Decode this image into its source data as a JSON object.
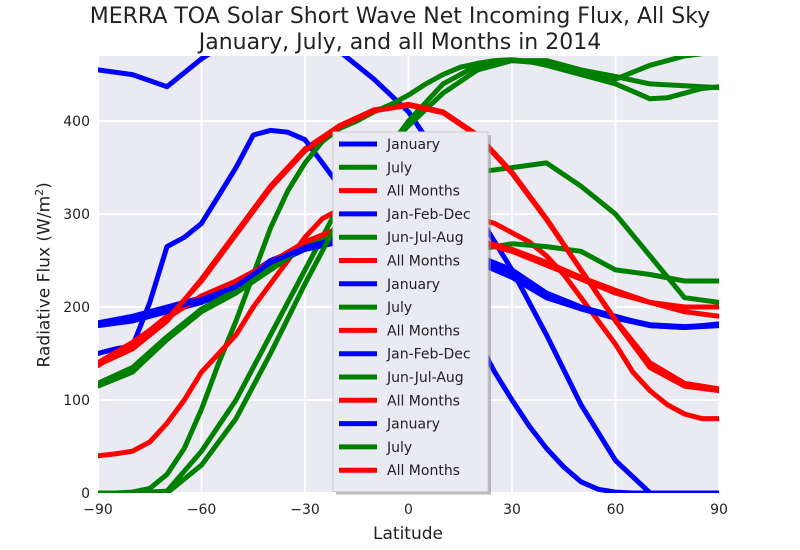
{
  "chart_data": {
    "type": "line",
    "title": "MERRA TOA Solar Short Wave Net Incoming Flux, All Sky",
    "subtitle": "January, July, and all Months in 2014",
    "xlabel": "Latitude",
    "ylabel_main": "Radiative Flux (W/m",
    "ylabel_sup": "2",
    "ylabel_end": ")",
    "xlim": [
      -90,
      90
    ],
    "ylim": [
      0,
      470
    ],
    "xticks": [
      -90,
      -60,
      -30,
      0,
      30,
      60,
      90
    ],
    "xtick_labels": [
      "−90",
      "−60",
      "−30",
      "0",
      "30",
      "60",
      "90"
    ],
    "yticks": [
      0,
      100,
      200,
      300,
      400
    ],
    "ytick_labels": [
      "0",
      "100",
      "200",
      "300",
      "400"
    ],
    "grid": true,
    "legend_position": "center",
    "colors": {
      "blue": "#0000ff",
      "green": "#008000",
      "red": "#ff0000",
      "plot_bg": "#eaeaf2",
      "grid": "#ffffff"
    },
    "series": [
      {
        "name": "January",
        "color": "#0000ff",
        "x": [
          -90,
          -80,
          -70,
          -60,
          -50,
          -40,
          -30,
          -20,
          -10,
          0,
          10,
          20,
          30,
          40,
          50,
          60,
          70,
          80,
          90
        ],
        "y": [
          455,
          450,
          437,
          467,
          490,
          495,
          490,
          475,
          445,
          410,
          355,
          300,
          240,
          170,
          95,
          35,
          0,
          0,
          0
        ]
      },
      {
        "name": "July",
        "color": "#008000",
        "x": [
          -90,
          -80,
          -70,
          -60,
          -50,
          -40,
          -30,
          -20,
          -10,
          0,
          10,
          20,
          30,
          40,
          50,
          60,
          70,
          80,
          90
        ],
        "y": [
          0,
          0,
          2,
          45,
          100,
          170,
          240,
          310,
          355,
          395,
          430,
          455,
          465,
          465,
          455,
          445,
          460,
          470,
          475
        ]
      },
      {
        "name": "All Months",
        "color": "#ff0000",
        "x": [
          -90,
          -80,
          -70,
          -60,
          -50,
          -40,
          -30,
          -20,
          -10,
          0,
          10,
          20,
          30,
          40,
          50,
          60,
          70,
          80,
          90
        ],
        "y": [
          138,
          155,
          185,
          230,
          280,
          330,
          370,
          395,
          412,
          418,
          410,
          385,
          345,
          295,
          240,
          185,
          135,
          115,
          110
        ]
      },
      {
        "name": "Jan-Feb-Dec",
        "color": "#0000ff",
        "x": [
          -90,
          -85,
          -80,
          -75,
          -70,
          -65,
          -60,
          -55,
          -50,
          -45,
          -40,
          -35,
          -30,
          -25,
          -20,
          -15,
          -10,
          -5,
          0,
          5,
          10,
          15,
          20,
          25,
          30,
          35,
          40,
          45,
          50,
          55,
          60,
          65,
          70,
          75,
          80,
          85,
          90
        ],
        "y": [
          150,
          155,
          158,
          205,
          265,
          275,
          290,
          320,
          350,
          385,
          390,
          388,
          380,
          355,
          330,
          310,
          285,
          270,
          260,
          240,
          218,
          195,
          165,
          130,
          100,
          72,
          48,
          28,
          12,
          4,
          1,
          0,
          0,
          0,
          0,
          0,
          0
        ]
      },
      {
        "name": "Jun-Jul-Aug",
        "color": "#008000",
        "x": [
          -90,
          -85,
          -80,
          -75,
          -70,
          -65,
          -60,
          -55,
          -50,
          -45,
          -40,
          -35,
          -30,
          -25,
          -20,
          -15,
          -10,
          -5,
          0,
          5,
          10,
          15,
          20,
          25,
          30,
          35,
          40,
          45,
          50,
          55,
          60,
          65,
          70,
          75,
          80,
          85,
          90
        ],
        "y": [
          0,
          0,
          1,
          5,
          20,
          48,
          90,
          140,
          185,
          235,
          285,
          325,
          355,
          378,
          392,
          400,
          410,
          418,
          428,
          440,
          450,
          458,
          462,
          465,
          466,
          464,
          460,
          455,
          450,
          445,
          440,
          432,
          424,
          425,
          430,
          435,
          437
        ]
      },
      {
        "name": "All Months",
        "color": "#ff0000",
        "x": [
          -90,
          -85,
          -80,
          -75,
          -70,
          -65,
          -60,
          -55,
          -50,
          -45,
          -40,
          -35,
          -30,
          -25,
          -20,
          -15,
          -10,
          -5,
          0,
          5,
          10,
          15,
          20,
          25,
          30,
          35,
          40,
          45,
          50,
          55,
          60,
          65,
          70,
          75,
          80,
          85,
          90
        ],
        "y": [
          40,
          42,
          45,
          55,
          75,
          100,
          130,
          150,
          170,
          200,
          225,
          250,
          275,
          295,
          305,
          300,
          292,
          290,
          290,
          290,
          290,
          292,
          295,
          290,
          280,
          270,
          255,
          235,
          210,
          185,
          160,
          130,
          110,
          95,
          85,
          80,
          80
        ]
      },
      {
        "name": "January",
        "color": "#0000ff",
        "x": [
          -90,
          -80,
          -70,
          -60,
          -50,
          -40,
          -30,
          -20,
          -10,
          0,
          10,
          20,
          30,
          40,
          50,
          60,
          70,
          80,
          90
        ],
        "y": [
          183,
          190,
          200,
          210,
          225,
          250,
          265,
          275,
          280,
          275,
          265,
          255,
          240,
          215,
          200,
          190,
          180,
          178,
          180
        ]
      },
      {
        "name": "July",
        "color": "#008000",
        "x": [
          -90,
          -80,
          -70,
          -60,
          -50,
          -40,
          -30,
          -20,
          -10,
          0,
          10,
          20,
          30,
          40,
          50,
          60,
          70,
          80,
          90
        ],
        "y": [
          115,
          130,
          165,
          195,
          215,
          240,
          265,
          275,
          270,
          265,
          260,
          262,
          268,
          265,
          260,
          240,
          235,
          228,
          228
        ]
      },
      {
        "name": "All Months",
        "color": "#ff0000",
        "x": [
          -90,
          -80,
          -70,
          -60,
          -50,
          -40,
          -30,
          -20,
          -10,
          0,
          10,
          20,
          30,
          40,
          50,
          60,
          70,
          80,
          90
        ],
        "y": [
          137,
          160,
          190,
          210,
          225,
          245,
          268,
          285,
          290,
          288,
          280,
          270,
          260,
          245,
          230,
          215,
          205,
          200,
          200
        ]
      },
      {
        "name": "Jan-Feb-Dec",
        "color": "#0000ff",
        "x": [
          -90,
          -80,
          -70,
          -60,
          -50,
          -40,
          -30,
          -20,
          -10,
          0,
          10,
          20,
          30,
          40,
          50,
          60,
          70,
          80,
          90
        ],
        "y": [
          180,
          185,
          195,
          205,
          220,
          245,
          262,
          270,
          272,
          268,
          258,
          248,
          232,
          210,
          198,
          188,
          180,
          178,
          182
        ]
      },
      {
        "name": "Jun-Jul-Aug",
        "color": "#008000",
        "x": [
          -90,
          -80,
          -70,
          -60,
          -50,
          -40,
          -30,
          -20,
          -10,
          0,
          10,
          20,
          30,
          40,
          50,
          60,
          70,
          80,
          90
        ],
        "y": [
          118,
          135,
          168,
          198,
          218,
          242,
          266,
          278,
          285,
          305,
          335,
          345,
          350,
          355,
          330,
          300,
          255,
          210,
          205
        ]
      },
      {
        "name": "All Months",
        "color": "#ff0000",
        "x": [
          -90,
          -80,
          -70,
          -60,
          -50,
          -40,
          -30,
          -20,
          -10,
          0,
          10,
          20,
          30,
          40,
          50,
          60,
          70,
          80,
          90
        ],
        "y": [
          140,
          162,
          188,
          212,
          228,
          248,
          270,
          285,
          292,
          290,
          282,
          272,
          262,
          248,
          232,
          218,
          205,
          195,
          190
        ]
      },
      {
        "name": "January",
        "color": "#0000ff",
        "x": [
          -90,
          -80,
          -70,
          -60,
          -50,
          -40,
          -30,
          -20,
          -10,
          0,
          10,
          20,
          30,
          40,
          50,
          60,
          70,
          80,
          90
        ],
        "y": [
          182,
          188,
          198,
          208,
          222,
          248,
          264,
          274,
          278,
          272,
          262,
          252,
          236,
          212,
          199,
          189,
          181,
          179,
          181
        ]
      },
      {
        "name": "July",
        "color": "#008000",
        "x": [
          -90,
          -80,
          -70,
          -60,
          -50,
          -40,
          -30,
          -20,
          -10,
          0,
          10,
          20,
          30,
          40,
          50,
          60,
          70,
          80,
          90
        ],
        "y": [
          0,
          0,
          0,
          30,
          80,
          150,
          225,
          295,
          350,
          400,
          440,
          460,
          465,
          462,
          455,
          448,
          440,
          438,
          436
        ]
      },
      {
        "name": "All Months",
        "color": "#ff0000",
        "x": [
          -90,
          -80,
          -70,
          -60,
          -50,
          -40,
          -30,
          -20,
          -10,
          0,
          10,
          20,
          30,
          40,
          50,
          60,
          70,
          80,
          90
        ],
        "y": [
          139,
          157,
          187,
          228,
          278,
          328,
          368,
          394,
          411,
          417,
          409,
          384,
          344,
          294,
          240,
          186,
          140,
          118,
          112
        ]
      }
    ]
  }
}
